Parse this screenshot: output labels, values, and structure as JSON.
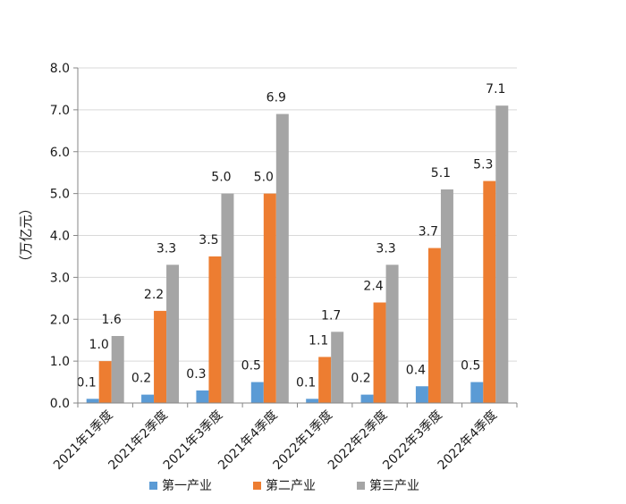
{
  "chart_data": {
    "type": "bar",
    "title": "",
    "xlabel": "",
    "ylabel": "（万亿元）",
    "ylim": [
      0,
      8
    ],
    "yticks": [
      "0.0",
      "1.0",
      "2.0",
      "3.0",
      "4.0",
      "5.0",
      "6.0",
      "7.0",
      "8.0"
    ],
    "grid": true,
    "legend_position": "bottom",
    "categories": [
      "2021年1季度",
      "2021年2季度",
      "2021年3季度",
      "2021年4季度",
      "2022年1季度",
      "2022年2季度",
      "2022年3季度",
      "2022年4季度"
    ],
    "series": [
      {
        "name": "第一产业",
        "color": "#5b9bd5",
        "values": [
          0.1,
          0.2,
          0.3,
          0.5,
          0.1,
          0.2,
          0.4,
          0.5
        ]
      },
      {
        "name": "第二产业",
        "color": "#ed7d31",
        "values": [
          1.0,
          2.2,
          3.5,
          5.0,
          1.1,
          2.4,
          3.7,
          5.3
        ]
      },
      {
        "name": "第三产业",
        "color": "#a5a5a5",
        "values": [
          1.6,
          3.3,
          5.0,
          6.9,
          1.7,
          3.3,
          5.1,
          7.1
        ]
      }
    ]
  }
}
